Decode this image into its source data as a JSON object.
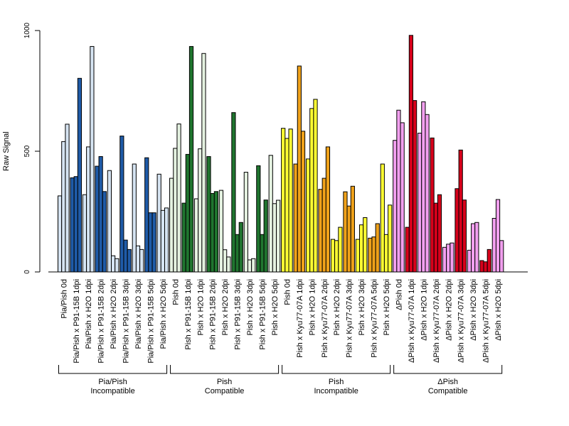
{
  "chart_data": {
    "type": "bar",
    "title": "",
    "xlabel": "",
    "ylabel": "Raw Signal",
    "ylim": [
      0,
      1000
    ],
    "yticks": [
      0,
      500,
      1000
    ],
    "grid": false,
    "bar_outline_color": "#000000",
    "group_colors": {
      "light_blue": "#d6e4f2",
      "dark_blue": "#1f5ba8",
      "light_green": "#e5f2e1",
      "dark_green": "#20752f",
      "yellow": "#ffff33",
      "orange": "#f0a21a",
      "pink": "#f3a0f0",
      "red": "#d7001b"
    },
    "categories": [
      {
        "label": "Pia/Pish 0d",
        "color": "light_blue",
        "values": [
          315,
          540,
          612
        ]
      },
      {
        "label": "Pia/Pish x P91-15B 1dpi",
        "color": "dark_blue",
        "values": [
          390,
          395,
          802
        ]
      },
      {
        "label": "Pia/Pish x H2O 1dpi",
        "color": "light_blue",
        "values": [
          320,
          518,
          934
        ]
      },
      {
        "label": "Pia/Pish x P91-15B 2dpi",
        "color": "dark_blue",
        "values": [
          438,
          478,
          333
        ]
      },
      {
        "label": "Pia/Pish x H2O 2dpi",
        "color": "light_blue",
        "values": [
          420,
          67,
          55
        ]
      },
      {
        "label": "Pia/Pish x P91-15B 3dpi",
        "color": "dark_blue",
        "values": [
          563,
          132,
          93
        ]
      },
      {
        "label": "Pia/Pish x H2O 3dpi",
        "color": "light_blue",
        "values": [
          447,
          108,
          93
        ]
      },
      {
        "label": "Pia/Pish x P91-15B 5dpi",
        "color": "dark_blue",
        "values": [
          473,
          245,
          245
        ]
      },
      {
        "label": "Pia/Pish x H2O 5dpi",
        "color": "light_blue",
        "values": [
          405,
          255,
          265
        ]
      },
      {
        "label": "Pish 0d",
        "color": "light_green",
        "values": [
          388,
          512,
          613
        ]
      },
      {
        "label": "Pish x P91-15B 1dpi",
        "color": "dark_green",
        "values": [
          285,
          487,
          934
        ]
      },
      {
        "label": "Pish x H2O 1dpi",
        "color": "light_green",
        "values": [
          303,
          510,
          905
        ]
      },
      {
        "label": "Pish x P91-15B 2dpi",
        "color": "dark_green",
        "values": [
          478,
          325,
          333
        ]
      },
      {
        "label": "Pish x H2O 2dpi",
        "color": "light_green",
        "values": [
          338,
          92,
          62
        ]
      },
      {
        "label": "Pish x P91-15B 3dpi",
        "color": "dark_green",
        "values": [
          660,
          155,
          205
        ]
      },
      {
        "label": "Pish x H2O 3dpi",
        "color": "light_green",
        "values": [
          413,
          50,
          55
        ]
      },
      {
        "label": "Pish x P91-15B 5dpi",
        "color": "dark_green",
        "values": [
          440,
          155,
          298
        ]
      },
      {
        "label": "Pish x H2O 5dpi",
        "color": "light_green",
        "values": [
          483,
          283,
          297
        ]
      },
      {
        "label": "Pish 0d",
        "color": "yellow",
        "values": [
          595,
          553,
          592
        ]
      },
      {
        "label": "Pish x Kyu77-07A 1dpi",
        "color": "orange",
        "values": [
          447,
          853,
          583
        ]
      },
      {
        "label": "Pish x H2O 1dpi",
        "color": "yellow",
        "values": [
          468,
          677,
          715
        ]
      },
      {
        "label": "Pish x Kyu77-07A 2dpi",
        "color": "orange",
        "values": [
          342,
          388,
          518
        ]
      },
      {
        "label": "Pish x H2O 2dpi",
        "color": "yellow",
        "values": [
          135,
          130,
          185
        ]
      },
      {
        "label": "Pish x Kyu77-07A 3dpi",
        "color": "orange",
        "values": [
          332,
          273,
          355
        ]
      },
      {
        "label": "Pish x H2O 3dpi",
        "color": "yellow",
        "values": [
          135,
          195,
          225
        ]
      },
      {
        "label": "Pish x Kyu77-07A 5dpi",
        "color": "orange",
        "values": [
          140,
          145,
          200
        ]
      },
      {
        "label": "Pish x H2O 5dpi",
        "color": "yellow",
        "values": [
          447,
          155,
          277
        ]
      },
      {
        "label": "ΔPish 0d",
        "color": "pink",
        "values": [
          545,
          670,
          618
        ]
      },
      {
        "label": "ΔPish x Kyu77-07A 1dpi",
        "color": "red",
        "values": [
          185,
          980,
          710
        ]
      },
      {
        "label": "ΔPish x H2O 1dpi",
        "color": "pink",
        "values": [
          575,
          705,
          652
        ]
      },
      {
        "label": "ΔPish x Kyu77-07A 2dpi",
        "color": "red",
        "values": [
          555,
          285,
          320
        ]
      },
      {
        "label": "ΔPish x H2O 2dpi",
        "color": "pink",
        "values": [
          102,
          115,
          120
        ]
      },
      {
        "label": "ΔPish x Kyu77-07A 3dpi",
        "color": "red",
        "values": [
          345,
          505,
          298
        ]
      },
      {
        "label": "ΔPish x H2O 3dpi",
        "color": "pink",
        "values": [
          90,
          200,
          205
        ]
      },
      {
        "label": "ΔPish x Kyu77-07A 5dpi",
        "color": "red",
        "values": [
          47,
          42,
          93
        ]
      },
      {
        "label": "ΔPish x H2O 5dpi",
        "color": "pink",
        "values": [
          222,
          300,
          130
        ]
      }
    ],
    "groups": [
      {
        "line1": "Pia/Pish",
        "line2": "Incompatible",
        "first": 0,
        "last": 8
      },
      {
        "line1": "Pish",
        "line2": "Compatible",
        "first": 9,
        "last": 17
      },
      {
        "line1": "Pish",
        "line2": "Incompatible",
        "first": 18,
        "last": 26
      },
      {
        "line1": "ΔPish",
        "line2": "Compatible",
        "first": 27,
        "last": 35
      }
    ]
  }
}
